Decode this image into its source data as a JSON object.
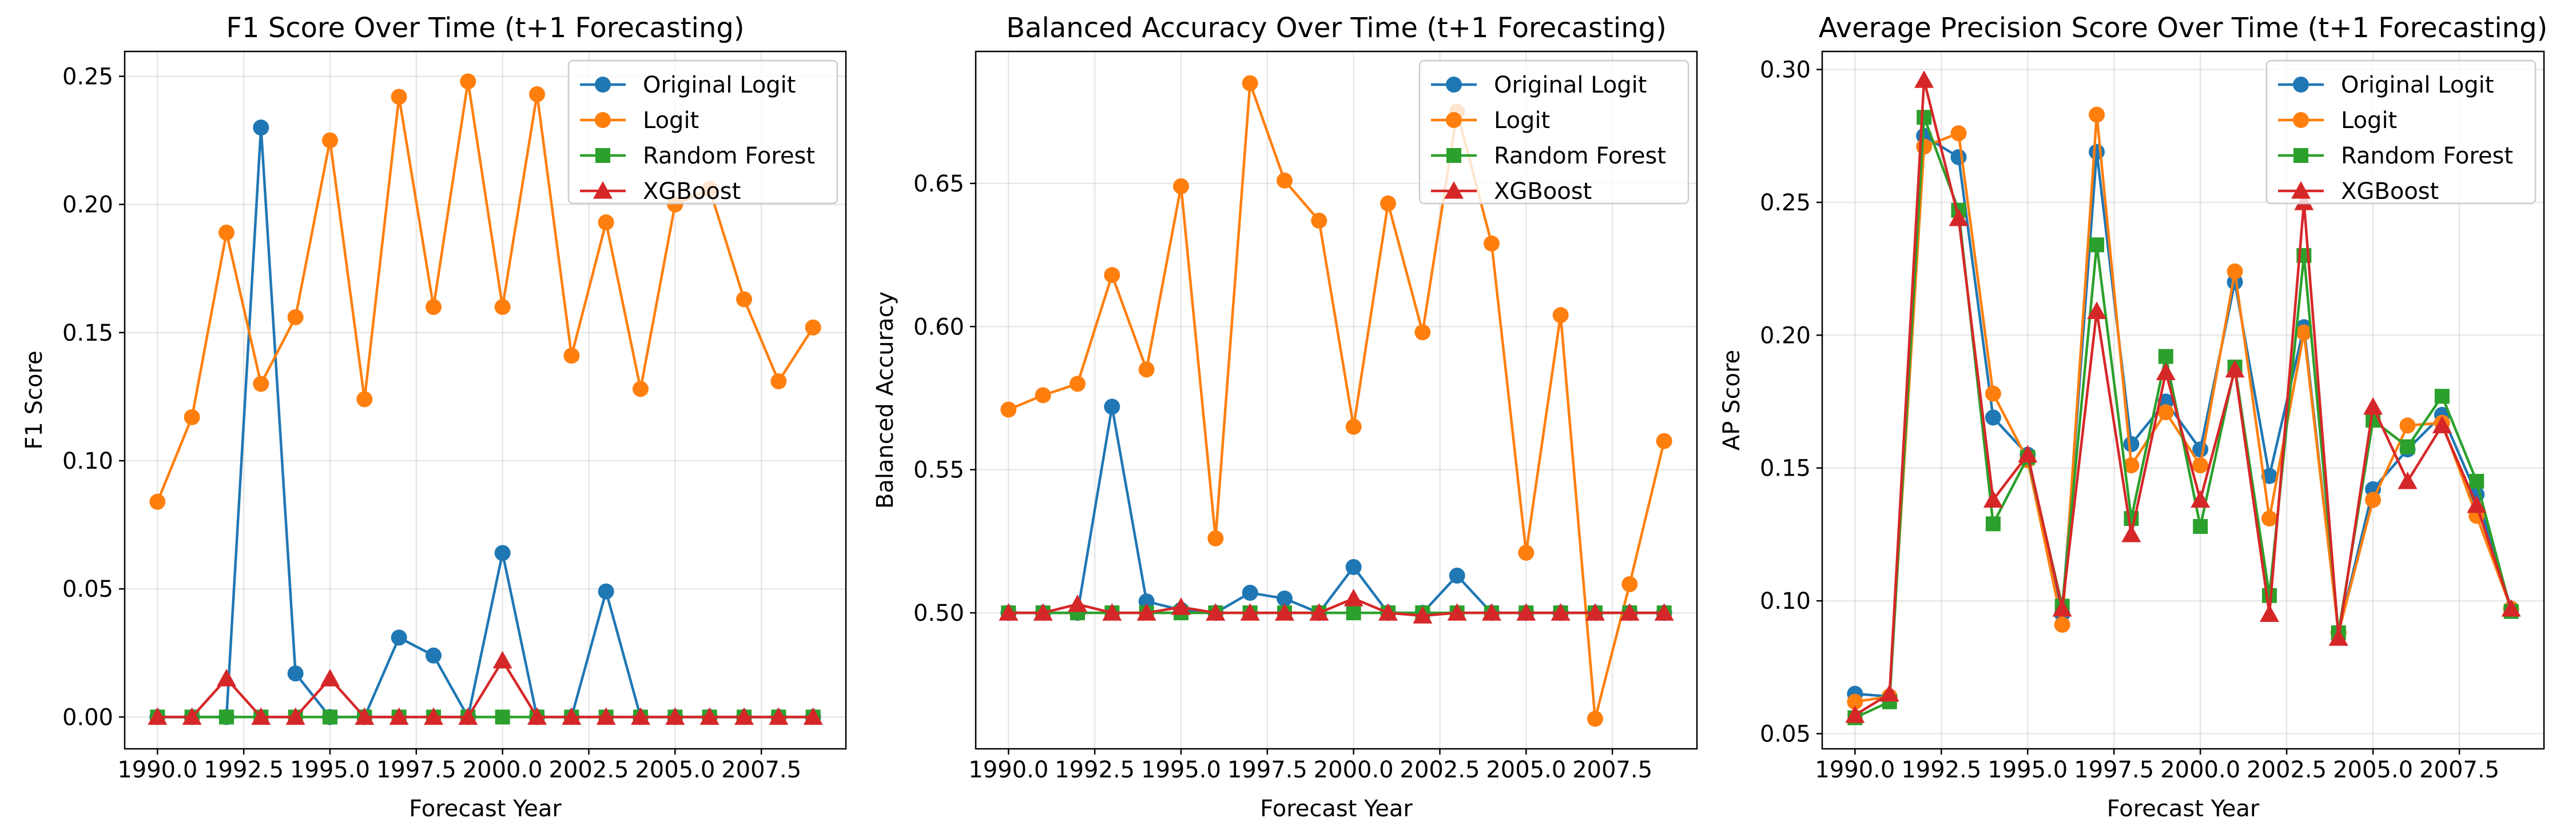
{
  "chart_data": [
    {
      "type": "line",
      "title": "F1 Score Over Time (t+1 Forecasting)",
      "xlabel": "Forecast Year",
      "ylabel": "F1 Score",
      "xlim": [
        1989.05,
        2009.95
      ],
      "ylim": [
        -0.0124,
        0.2597
      ],
      "xticks": [
        1990.0,
        1992.5,
        1995.0,
        1997.5,
        2000.0,
        2002.5,
        2005.0,
        2007.5
      ],
      "xtick_labels": [
        "1990.0",
        "1992.5",
        "1995.0",
        "1997.5",
        "2000.0",
        "2002.5",
        "2005.0",
        "2007.5"
      ],
      "yticks": [
        0.0,
        0.05,
        0.1,
        0.15,
        0.2,
        0.25
      ],
      "ytick_labels": [
        "0.00",
        "0.05",
        "0.10",
        "0.15",
        "0.20",
        "0.25"
      ],
      "grid": true,
      "legend": "top-right",
      "x": [
        1990,
        1991,
        1992,
        1993,
        1994,
        1995,
        1996,
        1997,
        1998,
        1999,
        2000,
        2001,
        2002,
        2003,
        2004,
        2005,
        2006,
        2007,
        2008,
        2009
      ],
      "series": [
        {
          "name": "Original Logit",
          "color": "#1f77b4",
          "marker": "circle",
          "values": [
            0.0,
            0.0,
            0.0,
            0.23,
            0.017,
            0.0,
            0.0,
            0.031,
            0.024,
            0.0,
            0.064,
            0.0,
            0.0,
            0.049,
            0.0,
            0.0,
            0.0,
            0.0,
            0.0,
            0.0
          ]
        },
        {
          "name": "Logit",
          "color": "#ff7f0e",
          "marker": "circle",
          "values": [
            0.084,
            0.117,
            0.189,
            0.13,
            0.156,
            0.225,
            0.124,
            0.242,
            0.16,
            0.248,
            0.16,
            0.243,
            0.141,
            0.193,
            0.128,
            0.2,
            0.206,
            0.163,
            0.131,
            0.152
          ]
        },
        {
          "name": "Random Forest",
          "color": "#2ca02c",
          "marker": "square",
          "values": [
            0,
            0,
            0,
            0,
            0,
            0,
            0,
            0,
            0,
            0,
            0,
            0,
            0,
            0,
            0,
            0,
            0,
            0,
            0,
            0
          ]
        },
        {
          "name": "XGBoost",
          "color": "#d62728",
          "marker": "triangle",
          "values": [
            0.0,
            0.0,
            0.015,
            0.0,
            0.0,
            0.015,
            0.0,
            0.0,
            0.0,
            0.0,
            0.022,
            0.0,
            0.0,
            0.0,
            0.0,
            0.0,
            0.0,
            0.0,
            0.0,
            0.0
          ]
        }
      ]
    },
    {
      "type": "line",
      "title": "Balanced Accuracy Over Time (t+1 Forecasting)",
      "xlabel": "Forecast Year",
      "ylabel": "Balanced Accuracy",
      "xlim": [
        1989.05,
        2009.95
      ],
      "ylim": [
        0.4525,
        0.6961
      ],
      "xticks": [
        1990.0,
        1992.5,
        1995.0,
        1997.5,
        2000.0,
        2002.5,
        2005.0,
        2007.5
      ],
      "xtick_labels": [
        "1990.0",
        "1992.5",
        "1995.0",
        "1997.5",
        "2000.0",
        "2002.5",
        "2005.0",
        "2007.5"
      ],
      "yticks": [
        0.5,
        0.55,
        0.6,
        0.65
      ],
      "ytick_labels": [
        "0.50",
        "0.55",
        "0.60",
        "0.65"
      ],
      "grid": true,
      "legend": "top-right",
      "x": [
        1990,
        1991,
        1992,
        1993,
        1994,
        1995,
        1996,
        1997,
        1998,
        1999,
        2000,
        2001,
        2002,
        2003,
        2004,
        2005,
        2006,
        2007,
        2008,
        2009
      ],
      "series": [
        {
          "name": "Original Logit",
          "color": "#1f77b4",
          "marker": "circle",
          "values": [
            0.5,
            0.5,
            0.5,
            0.572,
            0.504,
            0.501,
            0.5,
            0.507,
            0.505,
            0.5,
            0.516,
            0.5,
            0.5,
            0.513,
            0.5,
            0.5,
            0.5,
            0.5,
            0.5,
            0.5
          ]
        },
        {
          "name": "Logit",
          "color": "#ff7f0e",
          "marker": "circle",
          "values": [
            0.571,
            0.576,
            0.58,
            0.618,
            0.585,
            0.649,
            0.526,
            0.685,
            0.651,
            0.637,
            0.565,
            0.643,
            0.598,
            0.675,
            0.629,
            0.521,
            0.604,
            0.463,
            0.51,
            0.56
          ]
        },
        {
          "name": "Random Forest",
          "color": "#2ca02c",
          "marker": "square",
          "values": [
            0.5,
            0.5,
            0.5,
            0.5,
            0.5,
            0.5,
            0.5,
            0.5,
            0.5,
            0.5,
            0.5,
            0.5,
            0.5,
            0.5,
            0.5,
            0.5,
            0.5,
            0.5,
            0.5,
            0.5
          ]
        },
        {
          "name": "XGBoost",
          "color": "#d62728",
          "marker": "triangle",
          "values": [
            0.5,
            0.5,
            0.503,
            0.5,
            0.5,
            0.502,
            0.5,
            0.5,
            0.5,
            0.5,
            0.505,
            0.5,
            0.499,
            0.5,
            0.5,
            0.5,
            0.5,
            0.5,
            0.5,
            0.5
          ]
        }
      ]
    },
    {
      "type": "line",
      "title": "Average Precision Score Over Time (t+1 Forecasting)",
      "xlabel": "Forecast Year",
      "ylabel": "AP Score",
      "xlim": [
        1989.05,
        2009.95
      ],
      "ylim": [
        0.0443,
        0.3068
      ],
      "xticks": [
        1990.0,
        1992.5,
        1995.0,
        1997.5,
        2000.0,
        2002.5,
        2005.0,
        2007.5
      ],
      "xtick_labels": [
        "1990.0",
        "1992.5",
        "1995.0",
        "1997.5",
        "2000.0",
        "2002.5",
        "2005.0",
        "2007.5"
      ],
      "yticks": [
        0.05,
        0.1,
        0.15,
        0.2,
        0.25,
        0.3
      ],
      "ytick_labels": [
        "0.05",
        "0.10",
        "0.15",
        "0.20",
        "0.25",
        "0.30"
      ],
      "grid": true,
      "legend": "top-right",
      "x": [
        1990,
        1991,
        1992,
        1993,
        1994,
        1995,
        1996,
        1997,
        1998,
        1999,
        2000,
        2001,
        2002,
        2003,
        2004,
        2005,
        2006,
        2007,
        2008,
        2009
      ],
      "series": [
        {
          "name": "Original Logit",
          "color": "#1f77b4",
          "marker": "circle",
          "values": [
            0.065,
            0.064,
            0.275,
            0.267,
            0.169,
            0.155,
            0.095,
            0.269,
            0.159,
            0.175,
            0.157,
            0.22,
            0.147,
            0.203,
            0.088,
            0.142,
            0.157,
            0.17,
            0.14,
            0.097
          ]
        },
        {
          "name": "Logit",
          "color": "#ff7f0e",
          "marker": "circle",
          "values": [
            0.062,
            0.064,
            0.271,
            0.276,
            0.178,
            0.153,
            0.091,
            0.283,
            0.151,
            0.171,
            0.151,
            0.224,
            0.131,
            0.201,
            0.088,
            0.138,
            0.166,
            0.167,
            0.132,
            0.097
          ]
        },
        {
          "name": "Random Forest",
          "color": "#2ca02c",
          "marker": "square",
          "values": [
            0.056,
            0.062,
            0.282,
            0.247,
            0.129,
            0.154,
            0.098,
            0.234,
            0.131,
            0.192,
            0.128,
            0.188,
            0.102,
            0.23,
            0.088,
            0.168,
            0.158,
            0.177,
            0.145,
            0.096
          ]
        },
        {
          "name": "XGBoost",
          "color": "#d62728",
          "marker": "triangle",
          "values": [
            0.057,
            0.065,
            0.296,
            0.244,
            0.138,
            0.155,
            0.097,
            0.209,
            0.125,
            0.186,
            0.138,
            0.187,
            0.095,
            0.25,
            0.086,
            0.173,
            0.145,
            0.166,
            0.136,
            0.097
          ]
        }
      ]
    }
  ]
}
